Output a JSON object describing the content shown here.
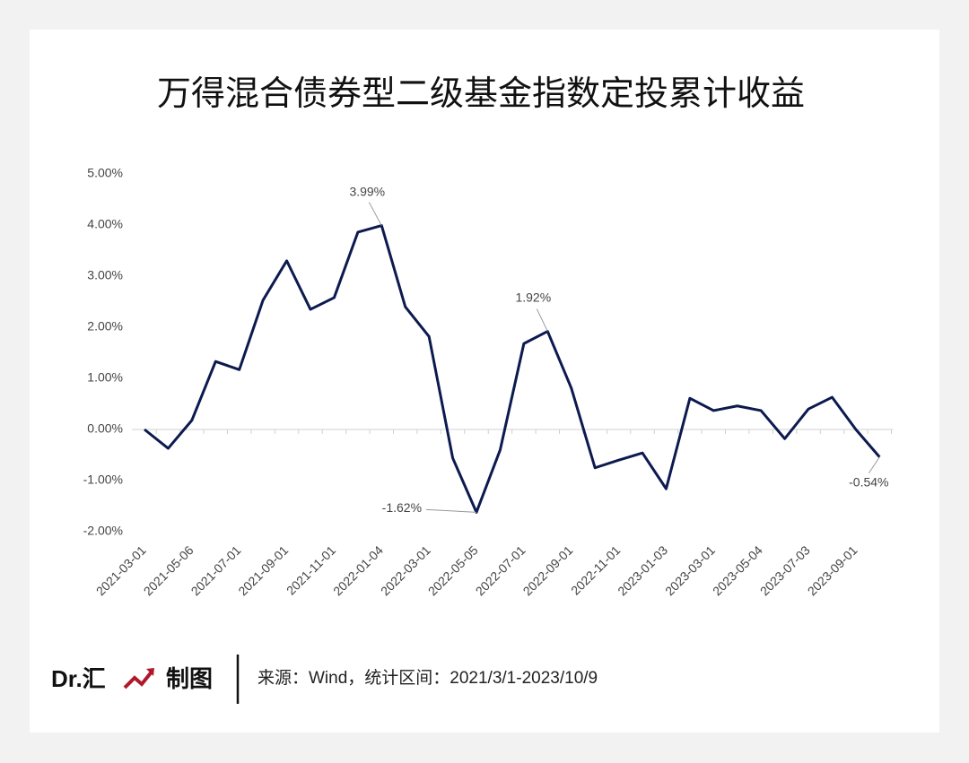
{
  "chart_data": {
    "type": "line",
    "title": "万得混合债券型二级基金指数定投累计收益",
    "categories": [
      "2021-03-01",
      null,
      "2021-05-06",
      null,
      "2021-07-01",
      null,
      "2021-09-01",
      null,
      "2021-11-01",
      null,
      "2022-01-04",
      null,
      "2022-03-01",
      null,
      "2022-05-05",
      null,
      "2022-07-01",
      null,
      "2022-09-01",
      null,
      "2022-11-01",
      null,
      "2023-01-03",
      null,
      "2023-03-01",
      null,
      "2023-05-04",
      null,
      "2023-07-03",
      null,
      "2023-09-01",
      null
    ],
    "series": [
      {
        "name": "累计收益",
        "color": "#0d1a4f",
        "values": [
          0,
          -0.37,
          0.18,
          1.33,
          1.17,
          2.53,
          3.3,
          2.35,
          2.58,
          3.86,
          3.99,
          2.4,
          1.82,
          -0.56,
          -1.62,
          -0.4,
          1.68,
          1.92,
          0.81,
          -0.75,
          -0.6,
          -0.46,
          -1.16,
          0.61,
          0.37,
          0.46,
          0.37,
          -0.18,
          0.4,
          0.63,
          0.0,
          -0.54
        ],
        "value_labels": [
          null,
          null,
          null,
          null,
          null,
          null,
          null,
          null,
          null,
          null,
          "3.99%",
          null,
          null,
          null,
          "-1.62%",
          null,
          null,
          "1.92%",
          null,
          null,
          null,
          null,
          null,
          null,
          null,
          null,
          null,
          null,
          null,
          null,
          null,
          "-0.54%"
        ]
      }
    ],
    "ylim": [
      -2,
      5
    ],
    "yticks": [
      {
        "value": -2,
        "label": "-2.00%"
      },
      {
        "value": -1,
        "label": "-1.00%"
      },
      {
        "value": 0,
        "label": "0.00%"
      },
      {
        "value": 1,
        "label": "1.00%"
      },
      {
        "value": 2,
        "label": "2.00%"
      },
      {
        "value": 3,
        "label": "3.00%"
      },
      {
        "value": 4,
        "label": "4.00%"
      },
      {
        "value": 5,
        "label": "5.00%"
      }
    ],
    "grid": false,
    "legend": false
  },
  "footer": {
    "brand": "Dr.汇",
    "made": "制图",
    "source": "来源：Wind，统计区间：2021/3/1-2023/10/9"
  }
}
